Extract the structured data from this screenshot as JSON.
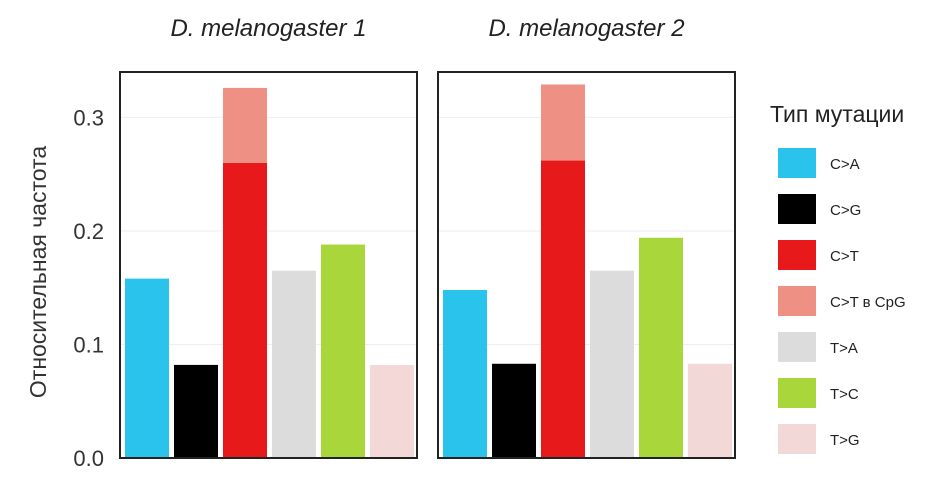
{
  "chart_data": {
    "type": "bar",
    "ylabel": "Относительная частота",
    "ylim": [
      0,
      0.34
    ],
    "yticks": [
      "0.0",
      "0.1",
      "0.2",
      "0.3"
    ],
    "ytick_values": [
      0.0,
      0.1,
      0.2,
      0.3
    ],
    "grid": true,
    "legend_title": "Тип мутации",
    "legend_position": "right",
    "categories": [
      {
        "name": "C>A",
        "color": "#29c3ec"
      },
      {
        "name": "C>G",
        "color": "#000000"
      },
      {
        "name": "C>T",
        "color": "#e8191b"
      },
      {
        "name": "C>T в CpG",
        "color": "#ee9083"
      },
      {
        "name": "T>A",
        "color": "#dcdcdc"
      },
      {
        "name": "T>C",
        "color": "#a9d63a"
      },
      {
        "name": "T>G",
        "color": "#f3d8d8"
      }
    ],
    "panels": [
      {
        "title": "D. melanogaster 1",
        "bars": [
          {
            "category": "C>A",
            "value": 0.158
          },
          {
            "category": "C>G",
            "value": 0.082
          },
          {
            "category": "C>T",
            "value": 0.26,
            "stack": [
              {
                "category": "C>T в CpG",
                "value": 0.066
              }
            ]
          },
          {
            "category": "T>A",
            "value": 0.165
          },
          {
            "category": "T>C",
            "value": 0.188
          },
          {
            "category": "T>G",
            "value": 0.082
          }
        ]
      },
      {
        "title": "D. melanogaster 2",
        "bars": [
          {
            "category": "C>A",
            "value": 0.148
          },
          {
            "category": "C>G",
            "value": 0.083
          },
          {
            "category": "C>T",
            "value": 0.262,
            "stack": [
              {
                "category": "C>T в CpG",
                "value": 0.067
              }
            ]
          },
          {
            "category": "T>A",
            "value": 0.165
          },
          {
            "category": "T>C",
            "value": 0.194
          },
          {
            "category": "T>G",
            "value": 0.083
          }
        ]
      }
    ]
  }
}
